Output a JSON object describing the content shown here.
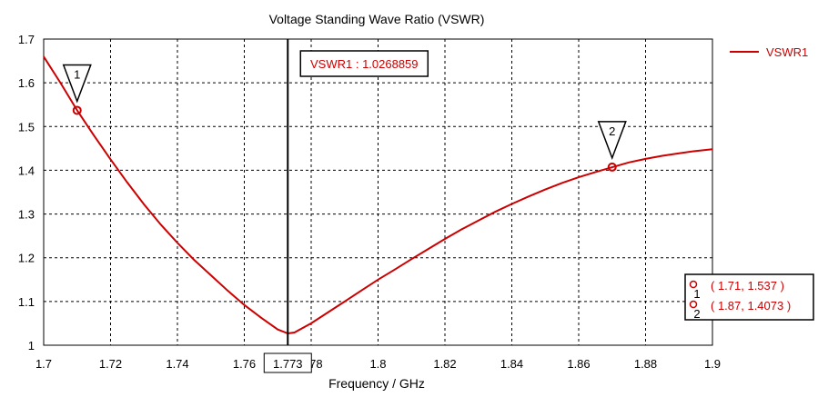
{
  "chart_data": {
    "type": "line",
    "title": "Voltage Standing Wave Ratio (VSWR)",
    "xlabel": "Frequency / GHz",
    "ylabel": "",
    "xlim": [
      1.7,
      1.9
    ],
    "ylim": [
      1.0,
      1.7
    ],
    "x_ticks": [
      "1.7",
      "1.72",
      "1.74",
      "1.76",
      "1.78",
      "1.8",
      "1.82",
      "1.84",
      "1.86",
      "1.88",
      "1.9"
    ],
    "y_ticks": [
      "1",
      "1.1",
      "1.2",
      "1.3",
      "1.4",
      "1.5",
      "1.6",
      "1.7"
    ],
    "grid": true,
    "legend_position": "top-right",
    "series": [
      {
        "name": "VSWR1",
        "color": "#cc0000",
        "x": [
          1.7,
          1.705,
          1.71,
          1.715,
          1.72,
          1.725,
          1.73,
          1.735,
          1.74,
          1.745,
          1.75,
          1.755,
          1.76,
          1.765,
          1.77,
          1.773,
          1.775,
          1.78,
          1.785,
          1.79,
          1.795,
          1.8,
          1.805,
          1.81,
          1.815,
          1.82,
          1.825,
          1.83,
          1.835,
          1.84,
          1.845,
          1.85,
          1.855,
          1.86,
          1.865,
          1.87,
          1.875,
          1.88,
          1.885,
          1.89,
          1.895,
          1.9
        ],
        "y": [
          1.66,
          1.6,
          1.537,
          1.48,
          1.425,
          1.372,
          1.322,
          1.276,
          1.234,
          1.195,
          1.16,
          1.125,
          1.092,
          1.063,
          1.036,
          1.027,
          1.029,
          1.05,
          1.075,
          1.1,
          1.125,
          1.15,
          1.173,
          1.197,
          1.22,
          1.243,
          1.265,
          1.285,
          1.305,
          1.323,
          1.34,
          1.356,
          1.371,
          1.384,
          1.396,
          1.407,
          1.418,
          1.426,
          1.433,
          1.439,
          1.444,
          1.448
        ]
      }
    ],
    "marker_line": {
      "x": 1.773,
      "label": "1.773",
      "annotation": "VSWR1 : 1.0268859"
    },
    "markers": [
      {
        "id": "1",
        "x": 1.71,
        "y": 1.537,
        "readout": "( 1.71, 1.537 )"
      },
      {
        "id": "2",
        "x": 1.87,
        "y": 1.4073,
        "readout": "( 1.87, 1.4073 )"
      }
    ]
  }
}
